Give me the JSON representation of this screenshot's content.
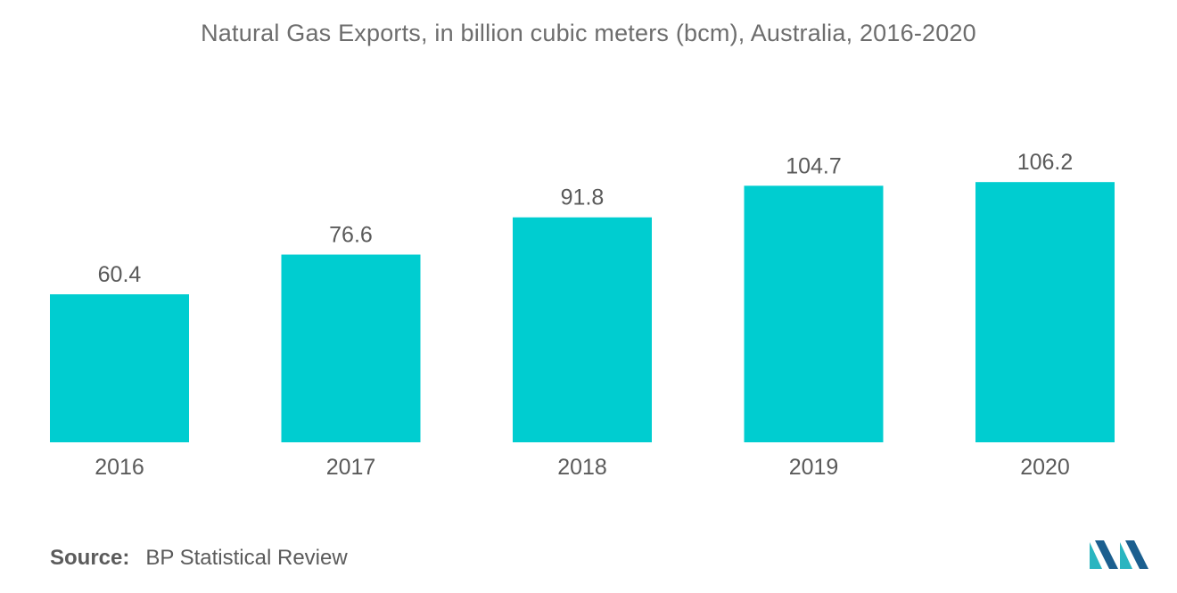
{
  "title": "Natural Gas Exports, in billion cubic meters (bcm), Australia, 2016-2020",
  "source": {
    "label": "Source:",
    "text": "BP Statistical Review"
  },
  "colors": {
    "bar": "#00CDD0",
    "text": "#5a5a5a",
    "title": "#6d6d6d",
    "logo_teal": "#2AB5C0",
    "logo_blue": "#1B5F8F"
  },
  "logo_icon": "mordor-intelligence-logo-icon",
  "chart_data": {
    "type": "bar",
    "categories": [
      "2016",
      "2017",
      "2018",
      "2019",
      "2020"
    ],
    "values": [
      60.4,
      76.6,
      91.8,
      104.7,
      106.2
    ],
    "title": "Natural Gas Exports, in billion cubic meters (bcm), Australia, 2016-2020",
    "xlabel": "",
    "ylabel": "",
    "ylim": [
      0,
      115
    ],
    "grid": false,
    "legend": "none",
    "data_labels": true
  }
}
